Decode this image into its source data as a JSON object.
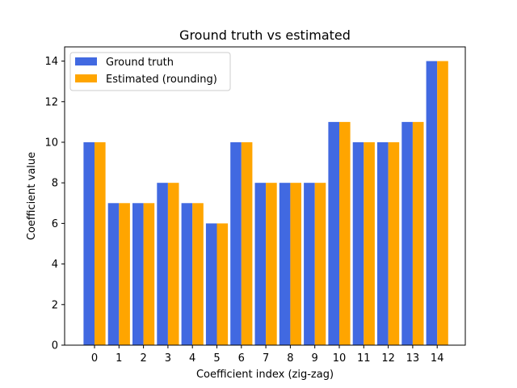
{
  "chart_data": {
    "type": "bar",
    "title": "Ground truth vs estimated",
    "xlabel": "Coefficient index (zig-zag)",
    "ylabel": "Coefficient value",
    "categories": [
      "0",
      "1",
      "2",
      "3",
      "4",
      "5",
      "6",
      "7",
      "8",
      "9",
      "10",
      "11",
      "12",
      "13",
      "14"
    ],
    "series": [
      {
        "name": "Ground truth",
        "color": "#4169e1",
        "values": [
          10,
          7,
          7,
          8,
          7,
          6,
          10,
          8,
          8,
          8,
          11,
          10,
          10,
          11,
          14
        ]
      },
      {
        "name": "Estimated (rounding)",
        "color": "#ffa500",
        "values": [
          10,
          7,
          7,
          8,
          7,
          6,
          10,
          8,
          8,
          8,
          11,
          10,
          10,
          11,
          14
        ]
      }
    ],
    "ylim": [
      0,
      14.7
    ],
    "yticks": [
      0,
      2,
      4,
      6,
      8,
      10,
      12,
      14
    ],
    "legend_position": "top-left",
    "grid": false
  }
}
